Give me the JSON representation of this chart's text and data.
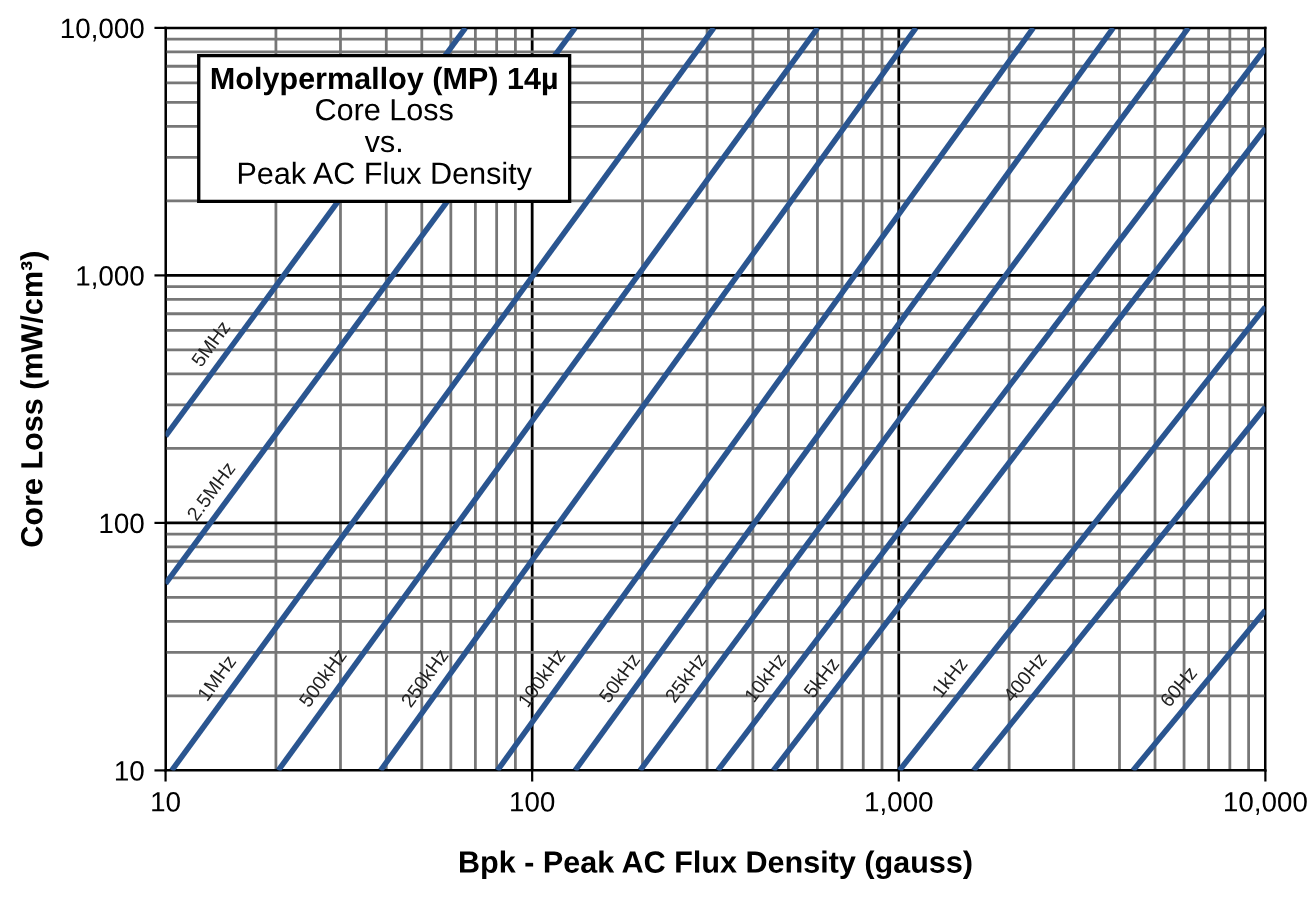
{
  "chart_data": {
    "type": "line",
    "title": "Molypermalloy (MP) 14µ",
    "subtitle": "Core Loss\nvs.\nPeak AC Flux Density",
    "xlabel": "Bpk - Peak AC Flux Density (gauss)",
    "ylabel": "Core Loss (mW/cm³)",
    "log": "xy",
    "grid": true,
    "xlim": [
      10,
      10000
    ],
    "ylim": [
      10,
      10000
    ],
    "xticks": [
      10,
      100,
      {
        "value": 1000,
        "label": "1,000"
      },
      {
        "value": 10000,
        "label": "10,000"
      }
    ],
    "yticks": [
      10,
      100,
      {
        "value": 1000,
        "label": "1,000"
      },
      {
        "value": 10000,
        "label": "10,000"
      }
    ],
    "series": [
      {
        "name": "5MHz",
        "color": "#2a5590",
        "x": [
          10,
          65.8
        ],
        "values": [
          224,
          10000
        ]
      },
      {
        "name": "2.5MHz",
        "color": "#2a5590",
        "x": [
          10,
          131
        ],
        "values": [
          56.8,
          10000
        ]
      },
      {
        "name": "1MHz",
        "color": "#2a5590",
        "x": [
          10.4,
          313
        ],
        "values": [
          10,
          10000
        ]
      },
      {
        "name": "500kHz",
        "color": "#2a5590",
        "x": [
          20.3,
          601
        ],
        "values": [
          10,
          10000
        ]
      },
      {
        "name": "250kHz",
        "color": "#2a5590",
        "x": [
          38.6,
          1114
        ],
        "values": [
          10,
          10000
        ]
      },
      {
        "name": "100kHz",
        "color": "#2a5590",
        "x": [
          80.4,
          2328
        ],
        "values": [
          10,
          10000
        ]
      },
      {
        "name": "50kHz",
        "color": "#2a5590",
        "x": [
          131,
          3846
        ],
        "values": [
          10,
          10000
        ]
      },
      {
        "name": "25kHz",
        "color": "#2a5590",
        "x": [
          197,
          6166
        ],
        "values": [
          10,
          10000
        ]
      },
      {
        "name": "10kHz",
        "color": "#2a5590",
        "x": [
          321,
          10000
        ],
        "values": [
          10,
          8280
        ]
      },
      {
        "name": "5kHz",
        "color": "#2a5590",
        "x": [
          455,
          10000
        ],
        "values": [
          10,
          3936
        ]
      },
      {
        "name": "1kHz",
        "color": "#2a5590",
        "x": [
          1004,
          10000
        ],
        "values": [
          10,
          746
        ]
      },
      {
        "name": "400Hz",
        "color": "#2a5590",
        "x": [
          1600,
          10000
        ],
        "values": [
          10,
          294
        ]
      },
      {
        "name": "60Hz",
        "color": "#2a5590",
        "x": [
          4355,
          10000
        ],
        "values": [
          10,
          44.4
        ]
      }
    ]
  }
}
